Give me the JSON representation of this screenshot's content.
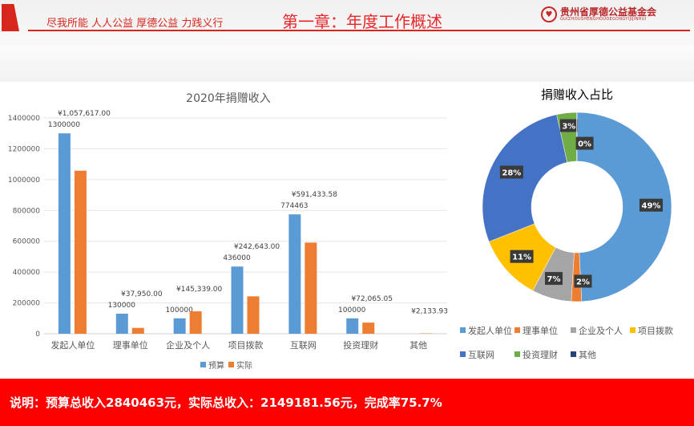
{
  "header": {
    "slogan": "尽我所能  人人公益  厚德公益  力践义行",
    "chapter_title": "第一章：年度工作概述",
    "org_name": "贵州省厚德公益基金会",
    "org_pinyin": "GUIZHOUSHENGHOUDEGONGYIJIJINHUI"
  },
  "chart_data": [
    {
      "type": "bar",
      "title": "2020年捐赠收入",
      "categories": [
        "发起人单位",
        "理事单位",
        "企业及个人",
        "项目拨款",
        "互联网",
        "投资理财",
        "其他"
      ],
      "series": [
        {
          "name": "预算",
          "color": "#5b9bd5",
          "values": [
            1300000,
            130000,
            100000,
            436000,
            774463,
            100000,
            0
          ],
          "labels": [
            "1300000",
            "130000",
            "100000",
            "436000",
            "774463",
            "100000",
            ""
          ]
        },
        {
          "name": "实际",
          "color": "#ed7d31",
          "values": [
            1057617,
            37950,
            145339,
            242643,
            591433.58,
            72065.05,
            2133.93
          ],
          "labels": [
            "¥1,057,617.00",
            "¥37,950.00",
            "¥145,339.00",
            "¥242,643.00",
            "¥591,433.58",
            "¥72,065.05",
            "¥2,133.93"
          ]
        }
      ],
      "ylim": [
        0,
        1400000
      ],
      "yticks": [
        "0",
        "200000",
        "400000",
        "600000",
        "800000",
        "1000000",
        "1200000",
        "1400000"
      ],
      "legend": "bottom",
      "grid": true
    },
    {
      "type": "pie",
      "title": "捐赠收入占比",
      "donut": true,
      "categories": [
        "发起人单位",
        "理事单位",
        "企业及个人",
        "项目拨款",
        "互联网",
        "投资理财",
        "其他"
      ],
      "values": [
        1057617,
        37950,
        145339,
        242643,
        591433.58,
        72065.05,
        2133.93
      ],
      "labels": [
        "49%",
        "2%",
        "7%",
        "11%",
        "28%",
        "3%",
        "0%"
      ],
      "colors": [
        "#5b9bd5",
        "#ed7d31",
        "#a5a5a5",
        "#ffc000",
        "#4472c4",
        "#70ad47",
        "#264478"
      ],
      "legend": "bottom"
    }
  ],
  "footer": {
    "summary": "说明：预算总收入2840463元，实际总收入：2149181.56元，完成率75.7%"
  }
}
